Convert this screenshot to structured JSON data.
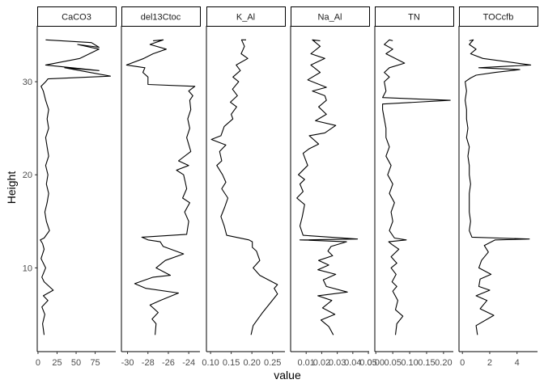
{
  "chart_data": {
    "type": "line",
    "layout": "facet_wrap",
    "xlabel": "value",
    "ylabel": "Height",
    "grid": false,
    "y_axis": {
      "range": [
        1,
        36
      ],
      "ticks": [
        10,
        20,
        30
      ]
    },
    "panels": [
      {
        "name": "CaCO3",
        "xlim": [
          -1,
          102
        ],
        "ticks": [
          0,
          25,
          50,
          75
        ],
        "points": [
          [
            8,
            2.8
          ],
          [
            6,
            4
          ],
          [
            9,
            5
          ],
          [
            5,
            5.8
          ],
          [
            13,
            6.5
          ],
          [
            7,
            7
          ],
          [
            20,
            7.6
          ],
          [
            8,
            8.5
          ],
          [
            5,
            9
          ],
          [
            10,
            10
          ],
          [
            4,
            11
          ],
          [
            8,
            12
          ],
          [
            6,
            12.6
          ],
          [
            3,
            13
          ],
          [
            8,
            13.2
          ],
          [
            15,
            14
          ],
          [
            11,
            15
          ],
          [
            9,
            16
          ],
          [
            12,
            17
          ],
          [
            14,
            18
          ],
          [
            11,
            19
          ],
          [
            13,
            20
          ],
          [
            10,
            21
          ],
          [
            14,
            22
          ],
          [
            12,
            23
          ],
          [
            10,
            24
          ],
          [
            14,
            25
          ],
          [
            12,
            26
          ],
          [
            14,
            27
          ],
          [
            10,
            28
          ],
          [
            7,
            29
          ],
          [
            4,
            29.5
          ],
          [
            10,
            30
          ],
          [
            13,
            30.3
          ],
          [
            95,
            30.6
          ],
          [
            55,
            31.2
          ],
          [
            35,
            31.5
          ],
          [
            80,
            31.2
          ],
          [
            10,
            31.8
          ],
          [
            55,
            32.5
          ],
          [
            80,
            33.5
          ],
          [
            52,
            34
          ],
          [
            80,
            33.7
          ],
          [
            70,
            34.2
          ],
          [
            10,
            34.5
          ]
        ]
      },
      {
        "name": "del13Ctoc",
        "xlim": [
          -30.6,
          -22.9
        ],
        "ticks": [
          -30,
          -28,
          -26,
          -24
        ],
        "points": [
          [
            -27.3,
            2.8
          ],
          [
            -27.2,
            4
          ],
          [
            -27.6,
            4.5
          ],
          [
            -27.0,
            5.2
          ],
          [
            -27.8,
            6
          ],
          [
            -26.8,
            6.5
          ],
          [
            -25.0,
            7.3
          ],
          [
            -28.2,
            7.8
          ],
          [
            -29.3,
            8.3
          ],
          [
            -27.5,
            9
          ],
          [
            -25.8,
            9.2
          ],
          [
            -27.2,
            10
          ],
          [
            -26.3,
            10.8
          ],
          [
            -24.5,
            11.5
          ],
          [
            -26.5,
            12.3
          ],
          [
            -26.8,
            12.8
          ],
          [
            -28.0,
            13
          ],
          [
            -28.6,
            13.3
          ],
          [
            -24.2,
            13.6
          ],
          [
            -24.0,
            15
          ],
          [
            -24.4,
            16
          ],
          [
            -23.9,
            17
          ],
          [
            -24.6,
            17.5
          ],
          [
            -24.2,
            18.5
          ],
          [
            -24.3,
            19
          ],
          [
            -24.5,
            20
          ],
          [
            -25.2,
            20.5
          ],
          [
            -24.0,
            21
          ],
          [
            -25.0,
            21.5
          ],
          [
            -23.8,
            22.5
          ],
          [
            -24.2,
            24
          ],
          [
            -23.9,
            25
          ],
          [
            -24.1,
            26
          ],
          [
            -23.8,
            27
          ],
          [
            -23.9,
            28
          ],
          [
            -23.6,
            28.5
          ],
          [
            -24.0,
            29
          ],
          [
            -23.4,
            29.5
          ],
          [
            -28.0,
            29.7
          ],
          [
            -28.0,
            30.5
          ],
          [
            -28.5,
            31
          ],
          [
            -28.3,
            31.5
          ],
          [
            -30.1,
            31.8
          ],
          [
            -28.4,
            32.5
          ],
          [
            -27.5,
            33
          ],
          [
            -26.2,
            33.5
          ],
          [
            -27.8,
            34
          ],
          [
            -26.5,
            34.5
          ],
          [
            -27.5,
            34.4
          ]
        ]
      },
      {
        "name": "K_Al",
        "xlim": [
          0.09,
          0.28
        ],
        "ticks": [
          0.1,
          0.15,
          0.2,
          0.25
        ],
        "points": [
          [
            0.198,
            2.8
          ],
          [
            0.203,
            3.8
          ],
          [
            0.226,
            5.2
          ],
          [
            0.244,
            6.2
          ],
          [
            0.262,
            7.2
          ],
          [
            0.254,
            7.8
          ],
          [
            0.262,
            8.2
          ],
          [
            0.219,
            9.2
          ],
          [
            0.203,
            10
          ],
          [
            0.219,
            10.8
          ],
          [
            0.211,
            11.8
          ],
          [
            0.201,
            12.2
          ],
          [
            0.201,
            12.8
          ],
          [
            0.193,
            13
          ],
          [
            0.139,
            13.5
          ],
          [
            0.133,
            14.5
          ],
          [
            0.125,
            15.5
          ],
          [
            0.134,
            16.5
          ],
          [
            0.142,
            17.5
          ],
          [
            0.127,
            18.5
          ],
          [
            0.137,
            19.2
          ],
          [
            0.129,
            20
          ],
          [
            0.115,
            21
          ],
          [
            0.127,
            21.5
          ],
          [
            0.122,
            22.5
          ],
          [
            0.137,
            23.2
          ],
          [
            0.102,
            23.8
          ],
          [
            0.125,
            24.2
          ],
          [
            0.133,
            25.2
          ],
          [
            0.154,
            26
          ],
          [
            0.15,
            26.5
          ],
          [
            0.163,
            27.3
          ],
          [
            0.148,
            27.8
          ],
          [
            0.165,
            28.5
          ],
          [
            0.153,
            29.2
          ],
          [
            0.168,
            30
          ],
          [
            0.154,
            30.5
          ],
          [
            0.172,
            31.2
          ],
          [
            0.162,
            31.8
          ],
          [
            0.19,
            32.5
          ],
          [
            0.174,
            33
          ],
          [
            0.182,
            33.8
          ],
          [
            0.175,
            34.5
          ],
          [
            0.186,
            34.5
          ]
        ]
      },
      {
        "name": "Na_Al",
        "xlim": [
          0.0,
          0.0505
        ],
        "ticks": [
          0.01,
          0.02,
          0.03,
          0.04,
          0.05
        ],
        "points": [
          [
            0.0275,
            2.8
          ],
          [
            0.0245,
            3.7
          ],
          [
            0.0195,
            4.4
          ],
          [
            0.0285,
            5
          ],
          [
            0.0205,
            5.7
          ],
          [
            0.0265,
            6.5
          ],
          [
            0.0175,
            7
          ],
          [
            0.0365,
            7.4
          ],
          [
            0.023,
            8
          ],
          [
            0.021,
            8.7
          ],
          [
            0.029,
            9.3
          ],
          [
            0.0175,
            9.8
          ],
          [
            0.0245,
            10.3
          ],
          [
            0.018,
            10.8
          ],
          [
            0.027,
            11.3
          ],
          [
            0.024,
            11.8
          ],
          [
            0.026,
            12.3
          ],
          [
            0.036,
            12.8
          ],
          [
            0.006,
            13
          ],
          [
            0.043,
            13.1
          ],
          [
            0.008,
            13.5
          ],
          [
            0.006,
            14.5
          ],
          [
            0.0075,
            15.5
          ],
          [
            0.009,
            16.8
          ],
          [
            0.004,
            17.5
          ],
          [
            0.008,
            18.2
          ],
          [
            0.006,
            19
          ],
          [
            0.009,
            19.5
          ],
          [
            0.005,
            20
          ],
          [
            0.011,
            21
          ],
          [
            0.008,
            22.3
          ],
          [
            0.012,
            22.8
          ],
          [
            0.018,
            23.3
          ],
          [
            0.012,
            24.2
          ],
          [
            0.022,
            24.5
          ],
          [
            0.029,
            25.3
          ],
          [
            0.016,
            25.8
          ],
          [
            0.023,
            26.5
          ],
          [
            0.018,
            27.3
          ],
          [
            0.023,
            28
          ],
          [
            0.022,
            28.5
          ],
          [
            0.014,
            29
          ],
          [
            0.023,
            29.4
          ],
          [
            0.011,
            30.2
          ],
          [
            0.019,
            31
          ],
          [
            0.013,
            31.8
          ],
          [
            0.022,
            32.5
          ],
          [
            0.013,
            33
          ],
          [
            0.019,
            33.8
          ],
          [
            0.014,
            34.5
          ],
          [
            0.019,
            34.4
          ]
        ]
      },
      {
        "name": "TN",
        "xlim": [
          -0.003,
          0.229
        ],
        "ticks": [
          0.0,
          0.05,
          0.1,
          0.15,
          0.2
        ],
        "points": [
          [
            0.058,
            2.8
          ],
          [
            0.062,
            4
          ],
          [
            0.08,
            4.8
          ],
          [
            0.058,
            5.5
          ],
          [
            0.065,
            6.5
          ],
          [
            0.05,
            7.5
          ],
          [
            0.062,
            8
          ],
          [
            0.048,
            8.5
          ],
          [
            0.06,
            9.3
          ],
          [
            0.045,
            10
          ],
          [
            0.062,
            10.5
          ],
          [
            0.045,
            11.2
          ],
          [
            0.068,
            12
          ],
          [
            0.048,
            12.5
          ],
          [
            0.038,
            12.8
          ],
          [
            0.09,
            13
          ],
          [
            0.055,
            13.2
          ],
          [
            0.04,
            14
          ],
          [
            0.05,
            15
          ],
          [
            0.045,
            16
          ],
          [
            0.055,
            17
          ],
          [
            0.04,
            18
          ],
          [
            0.05,
            19
          ],
          [
            0.035,
            20
          ],
          [
            0.045,
            21
          ],
          [
            0.03,
            22
          ],
          [
            0.04,
            23
          ],
          [
            0.03,
            24
          ],
          [
            0.03,
            25
          ],
          [
            0.025,
            26
          ],
          [
            0.02,
            27
          ],
          [
            0.02,
            27.6
          ],
          [
            0.22,
            28
          ],
          [
            0.02,
            28.3
          ],
          [
            0.03,
            29
          ],
          [
            0.025,
            30
          ],
          [
            0.04,
            30.5
          ],
          [
            0.025,
            31
          ],
          [
            0.04,
            31.5
          ],
          [
            0.085,
            32
          ],
          [
            0.03,
            33
          ],
          [
            0.05,
            33.5
          ],
          [
            0.025,
            34
          ],
          [
            0.04,
            34.5
          ],
          [
            0.05,
            34.4
          ]
        ]
      },
      {
        "name": "TOCcfb",
        "xlim": [
          -0.25,
          5.5
        ],
        "ticks": [
          0,
          2,
          4
        ],
        "points": [
          [
            1.1,
            2.8
          ],
          [
            1.0,
            3.8
          ],
          [
            2.3,
            4.9
          ],
          [
            1.3,
            5.6
          ],
          [
            1.8,
            6.5
          ],
          [
            1.0,
            7
          ],
          [
            2.0,
            7.6
          ],
          [
            1.2,
            8
          ],
          [
            1.3,
            8.8
          ],
          [
            2.1,
            9.3
          ],
          [
            1.2,
            10
          ],
          [
            1.4,
            10.8
          ],
          [
            1.9,
            11.7
          ],
          [
            1.6,
            12.4
          ],
          [
            2.4,
            13
          ],
          [
            4.9,
            13.1
          ],
          [
            0.7,
            13.3
          ],
          [
            0.5,
            14
          ],
          [
            0.6,
            15
          ],
          [
            0.5,
            16
          ],
          [
            0.5,
            17
          ],
          [
            0.5,
            18
          ],
          [
            0.6,
            19
          ],
          [
            0.5,
            20
          ],
          [
            0.5,
            21
          ],
          [
            0.4,
            22
          ],
          [
            0.5,
            23
          ],
          [
            0.3,
            24
          ],
          [
            0.4,
            25
          ],
          [
            0.3,
            26
          ],
          [
            0.3,
            27
          ],
          [
            0.2,
            28
          ],
          [
            0.3,
            29
          ],
          [
            0.2,
            30
          ],
          [
            0.6,
            30.4
          ],
          [
            1.0,
            30.7
          ],
          [
            2.4,
            31
          ],
          [
            4.2,
            31.3
          ],
          [
            1.2,
            31.5
          ],
          [
            5.0,
            31.8
          ],
          [
            1.5,
            32.5
          ],
          [
            0.6,
            33
          ],
          [
            1.0,
            33.5
          ],
          [
            0.5,
            34
          ],
          [
            0.8,
            34.5
          ],
          [
            0.5,
            34.4
          ]
        ]
      }
    ]
  }
}
